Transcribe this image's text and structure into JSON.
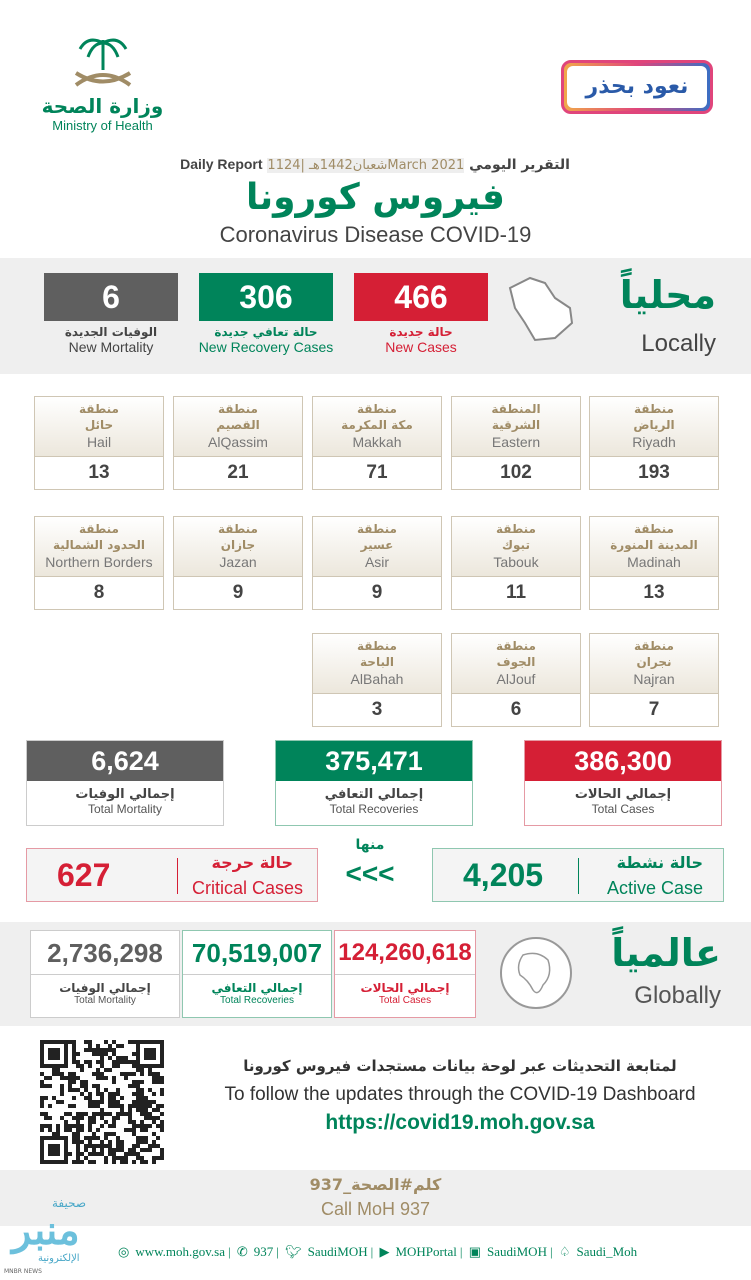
{
  "header": {
    "ministry_ar": "وزارة الصحة",
    "ministry_en": "Ministry of Health",
    "campaign": "نعود بحذر",
    "report_ar": "التقرير اليومي",
    "report_date": "11شعبان1442هـ |24March 2021",
    "report_en": "Daily Report",
    "title_ar": "فيروس كورونا",
    "title_en": "Coronavirus Disease COVID-19"
  },
  "locally": {
    "label_ar": "محلياً",
    "label_en": "Locally",
    "new_cases": {
      "value": "466",
      "ar": "حالة جديدة",
      "en": "New Cases"
    },
    "new_recovery": {
      "value": "306",
      "ar": "حالة تعافي جديدة",
      "en": "New Recovery Cases"
    },
    "new_mortality": {
      "value": "6",
      "ar": "الوفيات الجديدة",
      "en": "New Mortality"
    }
  },
  "regions": [
    {
      "ar1": "منطقة",
      "ar2": "الرياض",
      "en": "Riyadh",
      "value": "193"
    },
    {
      "ar1": "المنطقة",
      "ar2": "الشرقية",
      "en": "Eastern",
      "value": "102"
    },
    {
      "ar1": "منطقة",
      "ar2": "مكة المكرمة",
      "en": "Makkah",
      "value": "71"
    },
    {
      "ar1": "منطقة",
      "ar2": "القصيم",
      "en": "AlQassim",
      "value": "21"
    },
    {
      "ar1": "منطقة",
      "ar2": "حائل",
      "en": "Hail",
      "value": "13"
    },
    {
      "ar1": "منطقة",
      "ar2": "المدينة المنورة",
      "en": "Madinah",
      "value": "13"
    },
    {
      "ar1": "منطقة",
      "ar2": "تبوك",
      "en": "Tabouk",
      "value": "11"
    },
    {
      "ar1": "منطقة",
      "ar2": "عسير",
      "en": "Asir",
      "value": "9"
    },
    {
      "ar1": "منطقة",
      "ar2": "جازان",
      "en": "Jazan",
      "value": "9"
    },
    {
      "ar1": "منطقة",
      "ar2": "الحدود الشمالية",
      "en": "Northern Borders",
      "value": "8"
    },
    {
      "ar1": "منطقة",
      "ar2": "نجران",
      "en": "Najran",
      "value": "7"
    },
    {
      "ar1": "منطقة",
      "ar2": "الجوف",
      "en": "AlJouf",
      "value": "6"
    },
    {
      "ar1": "منطقة",
      "ar2": "الباحة",
      "en": "AlBahah",
      "value": "3"
    }
  ],
  "totals": {
    "cases": {
      "value": "386,300",
      "ar": "إجمالي الحالات",
      "en": "Total Cases"
    },
    "recoveries": {
      "value": "375,471",
      "ar": "إجمالي التعافي",
      "en": "Total Recoveries"
    },
    "mortality": {
      "value": "6,624",
      "ar": "إجمالي الوفيات",
      "en": "Total Mortality"
    }
  },
  "active": {
    "value": "4,205",
    "ar": "حالة نشطة",
    "en": "Active Case"
  },
  "of_which": "منها",
  "arrows": "<<<",
  "critical": {
    "value": "627",
    "ar": "حالة حرجة",
    "en": "Critical Cases"
  },
  "global": {
    "label_ar": "عالمياً",
    "label_en": "Globally",
    "cases": {
      "value": "124,260,618",
      "ar": "إجمالي الحالات",
      "en": "Total Cases"
    },
    "recoveries": {
      "value": "70,519,007",
      "ar": "إجمالي التعافي",
      "en": "Total Recoveries"
    },
    "mortality": {
      "value": "2,736,298",
      "ar": "إجمالي الوفيات",
      "en": "Total Mortality"
    }
  },
  "dashboard": {
    "ar": "لمتابعة التحديثات عبر لوحة بيانات مستجدات فيروس كورونا",
    "en": "To follow the updates through the COVID-19 Dashboard",
    "url": "https://covid19.moh.gov.sa"
  },
  "call": {
    "ar": "كلم#الصحة_937",
    "en": "Call MoH 937"
  },
  "footer": {
    "web": "www.moh.gov.sa",
    "phone": "937",
    "twitter": "SaudiMOH",
    "youtube": "MOHPortal",
    "facebook": "SaudiMOH",
    "snapchat": "Saudi_Moh"
  },
  "watermark": {
    "ar": "صحيفة",
    "ar2": "الإلكترونية",
    "en": "MNBR NEWS"
  },
  "colors": {
    "red": "#d51f35",
    "green": "#00845a",
    "gray": "#5f5f5f",
    "gold": "#a08c66"
  }
}
